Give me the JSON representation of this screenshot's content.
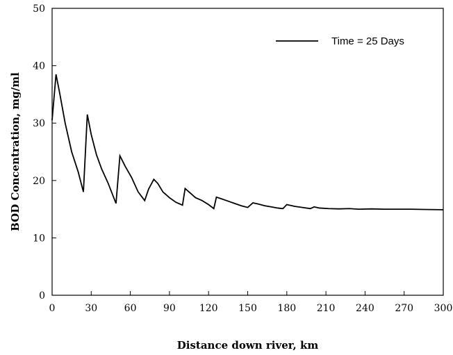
{
  "chart_data": {
    "type": "line",
    "title": "",
    "xlabel": "Distance down river, km",
    "ylabel": "BOD Concentration, mg/ml",
    "xlim": [
      0,
      300
    ],
    "ylim": [
      0,
      50
    ],
    "xticks": [
      0,
      30,
      60,
      90,
      120,
      150,
      180,
      210,
      240,
      270,
      300
    ],
    "yticks": [
      0,
      10,
      20,
      30,
      40,
      50
    ],
    "grid": false,
    "legend": "top-right",
    "colors": {
      "line": "#000000",
      "axes": "#000000"
    },
    "series": [
      {
        "name": "Time = 25 Days",
        "x": [
          0,
          3,
          6,
          10,
          15,
          20,
          24,
          27,
          30,
          34,
          38,
          43,
          49,
          52,
          56,
          61,
          66,
          71,
          74,
          78,
          81,
          85,
          90,
          95,
          100,
          102,
          106,
          110,
          115,
          120,
          124,
          126,
          130,
          135,
          140,
          145,
          150,
          154,
          158,
          163,
          168,
          173,
          177,
          180,
          186,
          192,
          198,
          201,
          205,
          212,
          220,
          228,
          235,
          245,
          255,
          265,
          275,
          285,
          300
        ],
        "y": [
          30.5,
          38.5,
          35,
          30,
          25,
          21.5,
          18,
          31.5,
          28,
          24.5,
          22,
          19.5,
          16,
          24.3,
          22.5,
          20.5,
          18,
          16.5,
          18.5,
          20.2,
          19.5,
          18,
          17,
          16.2,
          15.7,
          18.6,
          17.8,
          17,
          16.5,
          15.8,
          15.1,
          17.1,
          16.8,
          16.4,
          16,
          15.6,
          15.3,
          16.1,
          15.9,
          15.6,
          15.4,
          15.2,
          15.1,
          15.8,
          15.5,
          15.3,
          15.1,
          15.4,
          15.2,
          15.1,
          15.05,
          15.1,
          15.0,
          15.05,
          15.0,
          15.0,
          15.0,
          14.95,
          14.9
        ]
      }
    ]
  }
}
